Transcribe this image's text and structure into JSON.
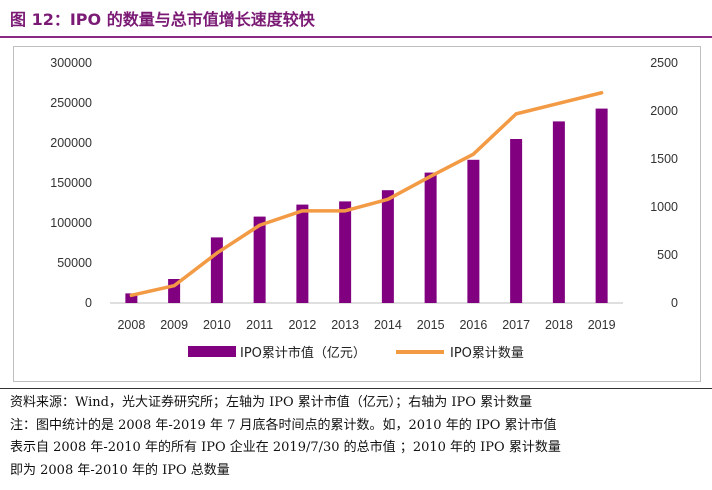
{
  "figure_title": "图 12：IPO 的数量与总市值增长速度较快",
  "notes": [
    "资料来源：Wind，光大证券研究所；左轴为 IPO 累计市值（亿元）；右轴为 IPO 累计数量",
    "注：图中统计的是 2008 年-2019 年 7 月底各时间点的累计数。如，2010 年的 IPO 累计市值",
    "表示自 2008 年-2010 年的所有 IPO 企业在 2019/7/30 的总市值 ；2010 年的 IPO 累计数量",
    "即为 2008 年-2010 年的 IPO 总数量"
  ],
  "chart_data": {
    "type": "bar+line",
    "categories": [
      "2008",
      "2009",
      "2010",
      "2011",
      "2012",
      "2013",
      "2014",
      "2015",
      "2016",
      "2017",
      "2018",
      "2019"
    ],
    "series": [
      {
        "name": "IPO累计市值（亿元）",
        "type": "bar",
        "axis": "left",
        "color": "#800080",
        "values": [
          12000,
          30000,
          82000,
          108000,
          123000,
          127000,
          141000,
          163000,
          179000,
          205000,
          227000,
          243000
        ]
      },
      {
        "name": "IPO累计数量",
        "type": "line",
        "axis": "right",
        "color": "#f39a45",
        "values": [
          80,
          180,
          520,
          810,
          960,
          960,
          1080,
          1320,
          1550,
          1970,
          2080,
          2190
        ]
      }
    ],
    "y_left": {
      "min": 0,
      "max": 300000,
      "ticks": [
        0,
        50000,
        100000,
        150000,
        200000,
        250000,
        300000
      ]
    },
    "y_right": {
      "min": 0,
      "max": 2500,
      "ticks": [
        0,
        500,
        1000,
        1500,
        2000,
        2500
      ]
    },
    "grid": false,
    "legend_position": "bottom"
  }
}
